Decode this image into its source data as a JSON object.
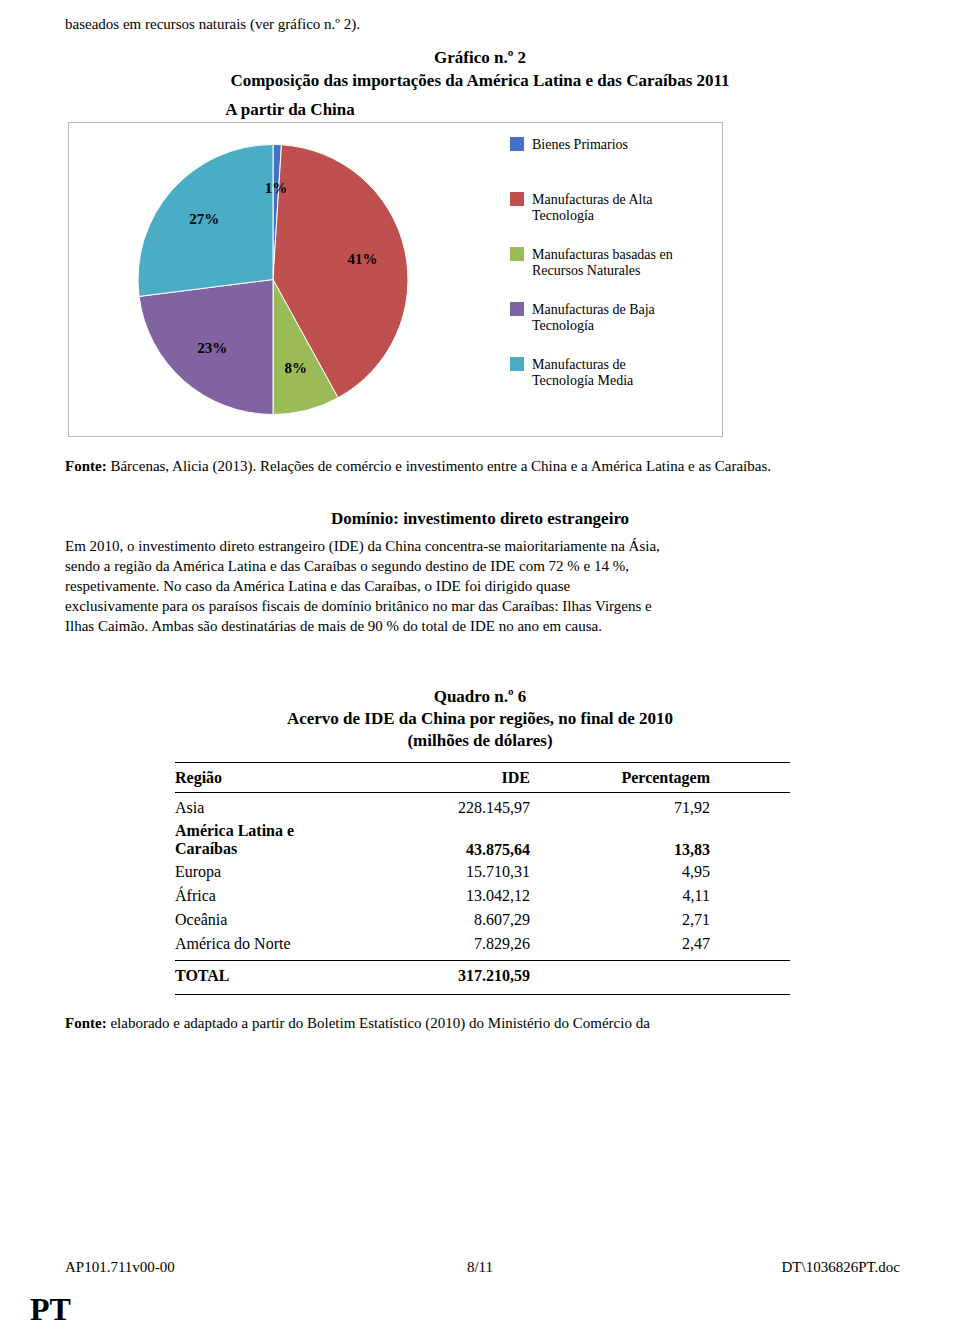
{
  "chart_data": {
    "type": "pie",
    "title": "Gráfico n.º 2",
    "subtitle": "Composição das importações da América Latina e das Caraíbas 2011",
    "annotations": [
      "A partir da China"
    ],
    "categories": [
      "Bienes Primarios",
      "Manufacturas de Alta\nTecnología",
      "Manufacturas basadas en\nRecursos Naturales",
      "Manufacturas de Baja\nTecnología",
      "Manufacturas de\nTecnología Media"
    ],
    "values": [
      1,
      41,
      8,
      23,
      27
    ],
    "value_labels": [
      "1%",
      "41%",
      "8%",
      "23%",
      "27%"
    ],
    "colors": [
      "#4472C4",
      "#C0504D",
      "#9BBB59",
      "#8064A2",
      "#4BACC6"
    ],
    "data_labels": true,
    "legend": "right"
  },
  "page": {
    "background": "#ffffff",
    "top_text": "baseados em recursos naturais (ver gráfico n.º 2).",
    "source_bold": "Fonte:",
    "source_text": "Bárcenas, Alicia (2013). Relações de comércio e investimento entre a China e a América Latina e as Caraíbas.",
    "domain_title": "Domínio: investimento direto estrangeiro",
    "domain_body_lines": [
      "Em 2010, o investimento direto estrangeiro (IDE) da China concentra-se maioritariamente na Ásia,",
      "sendo a região da América Latina e das Caraíbas o segundo destino de IDE com 72 % e 14 %,",
      "respetivamente. No caso da América Latina e das Caraíbas, o IDE foi dirigido quase",
      "exclusivamente para os paraísos fiscais de domínio britânico no mar das Caraíbas: Ilhas Virgens e",
      "Ilhas Caimão. Ambas são destinatárias de mais de 90 % do total de IDE no ano em causa."
    ],
    "table_title": [
      "Quadro n.º 6",
      "Acervo de IDE da China por regiões, no final de 2010",
      "(milhões de dólares)"
    ],
    "table_headers": [
      "Região",
      "IDE",
      "Percentagem"
    ],
    "table_rows": [
      [
        "Asia",
        "228.145,97",
        "71,92"
      ],
      [
        "América Latina e\nCaraíbas",
        "43.875,64",
        "13,83"
      ],
      [
        "Europa",
        "15.710,31",
        "4,95"
      ],
      [
        "África",
        "13.042,12",
        "4,11"
      ],
      [
        "Oceânia",
        "8.607,29",
        "2,71"
      ],
      [
        "América do Norte",
        "7.829,26",
        "2,47"
      ]
    ],
    "table_bold": [
      false,
      true,
      false,
      false,
      false,
      false
    ],
    "table_total": [
      "TOTAL",
      "317.210,59"
    ],
    "source2_bold": "Fonte:",
    "source2_text": "elaborado e adaptado a partir do Boletim Estatístico (2010) do Ministério do Comércio da",
    "footer_left": "AP101.711v00-00",
    "footer_center": "8/11",
    "footer_right": "DT\\1036826PT.doc",
    "pt_label": "PT"
  }
}
